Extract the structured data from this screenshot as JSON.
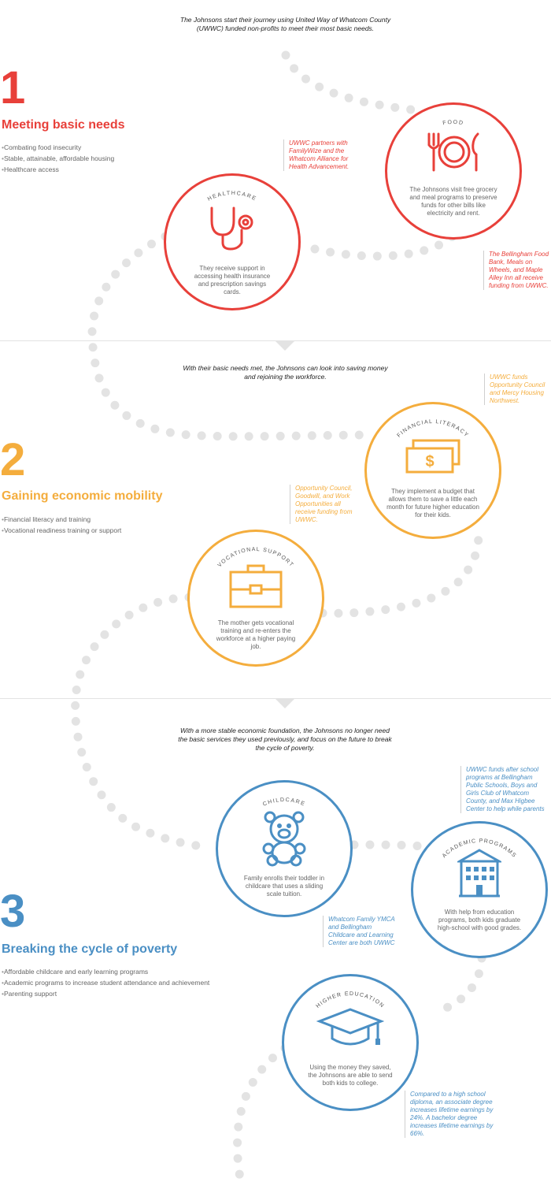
{
  "colors": {
    "red": "#e8403a",
    "orange": "#f4ad3d",
    "blue": "#4a8fc4",
    "dots": "#e3e3e3"
  },
  "sections": [
    {
      "intro": "The Johnsons start their journey using United Way of Whatcom County (UWWC) funded non-profits to meet their most basic needs.",
      "number": "1",
      "title": "Meeting basic needs",
      "bullets": [
        "Combating food insecurity",
        "Stable, attainable, affordable housing",
        "Healthcare access"
      ],
      "steps": [
        {
          "label": "FOOD",
          "icon": "utensils-plate-icon",
          "text": "The Johnsons visit free grocery and meal programs to preserve funds for other bills like electricity and rent.",
          "note": "The Bellingham Food Bank, Meals on Wheels, and Maple Alley Inn all receive funding from UWWC."
        },
        {
          "label": "HEALTHCARE",
          "icon": "stethoscope-icon",
          "text": "They receive support in accessing health insurance and prescription savings cards.",
          "note": "UWWC partners with FamilyWize and the Whatcom Alliance for Health Advancement."
        }
      ]
    },
    {
      "intro": "With their basic needs met, the Johnsons can look into saving money and rejoining the workforce.",
      "number": "2",
      "title": "Gaining economic mobility",
      "bullets": [
        "Financial literacy and training",
        "Vocational readiness training or support"
      ],
      "steps": [
        {
          "label": "FINANCIAL LITERACY",
          "icon": "money-bills-icon",
          "text": "They implement a budget that allows them to save a little each month for future higher education for their kids.",
          "note": "UWWC funds Opportunity Council and Mercy Housing Northwest."
        },
        {
          "label": "VOCATIONAL SUPPORT",
          "icon": "briefcase-icon",
          "text": "The mother gets vocational training and re-enters the workforce at a higher paying job.",
          "note": "Opportunity Council, Goodwill, and Work Opportunities all receive funding from UWWC."
        }
      ]
    },
    {
      "intro": "With a more stable economic foundation, the Johnsons no longer need the basic services they used previously, and focus on the future to break the cycle of poverty.",
      "number": "3",
      "title": "Breaking the cycle of poverty",
      "bullets": [
        "Affordable childcare and early learning programs",
        "Academic programs to increase student attendance and achievement",
        "Parenting support"
      ],
      "steps": [
        {
          "label": "CHILDCARE",
          "icon": "teddy-bear-icon",
          "text": "Family enrolls their toddler in childcare that uses a sliding scale tuition.",
          "note": "Whatcom Family YMCA and Bellingham Childcare and Learning Center are both UWWC"
        },
        {
          "label": "ACADEMIC PROGRAMS",
          "icon": "school-building-icon",
          "text": "With help from education programs, both kids graduate high-school with good grades.",
          "note": "UWWC funds after school programs at Bellingham Public Schools, Boys and Girls Club of Whatcom County, and Max Higbee Center to help while parents"
        },
        {
          "label": "HIGHER EDUCATION",
          "icon": "graduation-cap-icon",
          "text": "Using the money they saved, the Johnsons are able to send both kids to college.",
          "note": "Compared to a high school diploma, an associate degree increases lifetime earnings by 24%. A bachelor degree increases lifetime earnings by 66%."
        }
      ]
    }
  ]
}
